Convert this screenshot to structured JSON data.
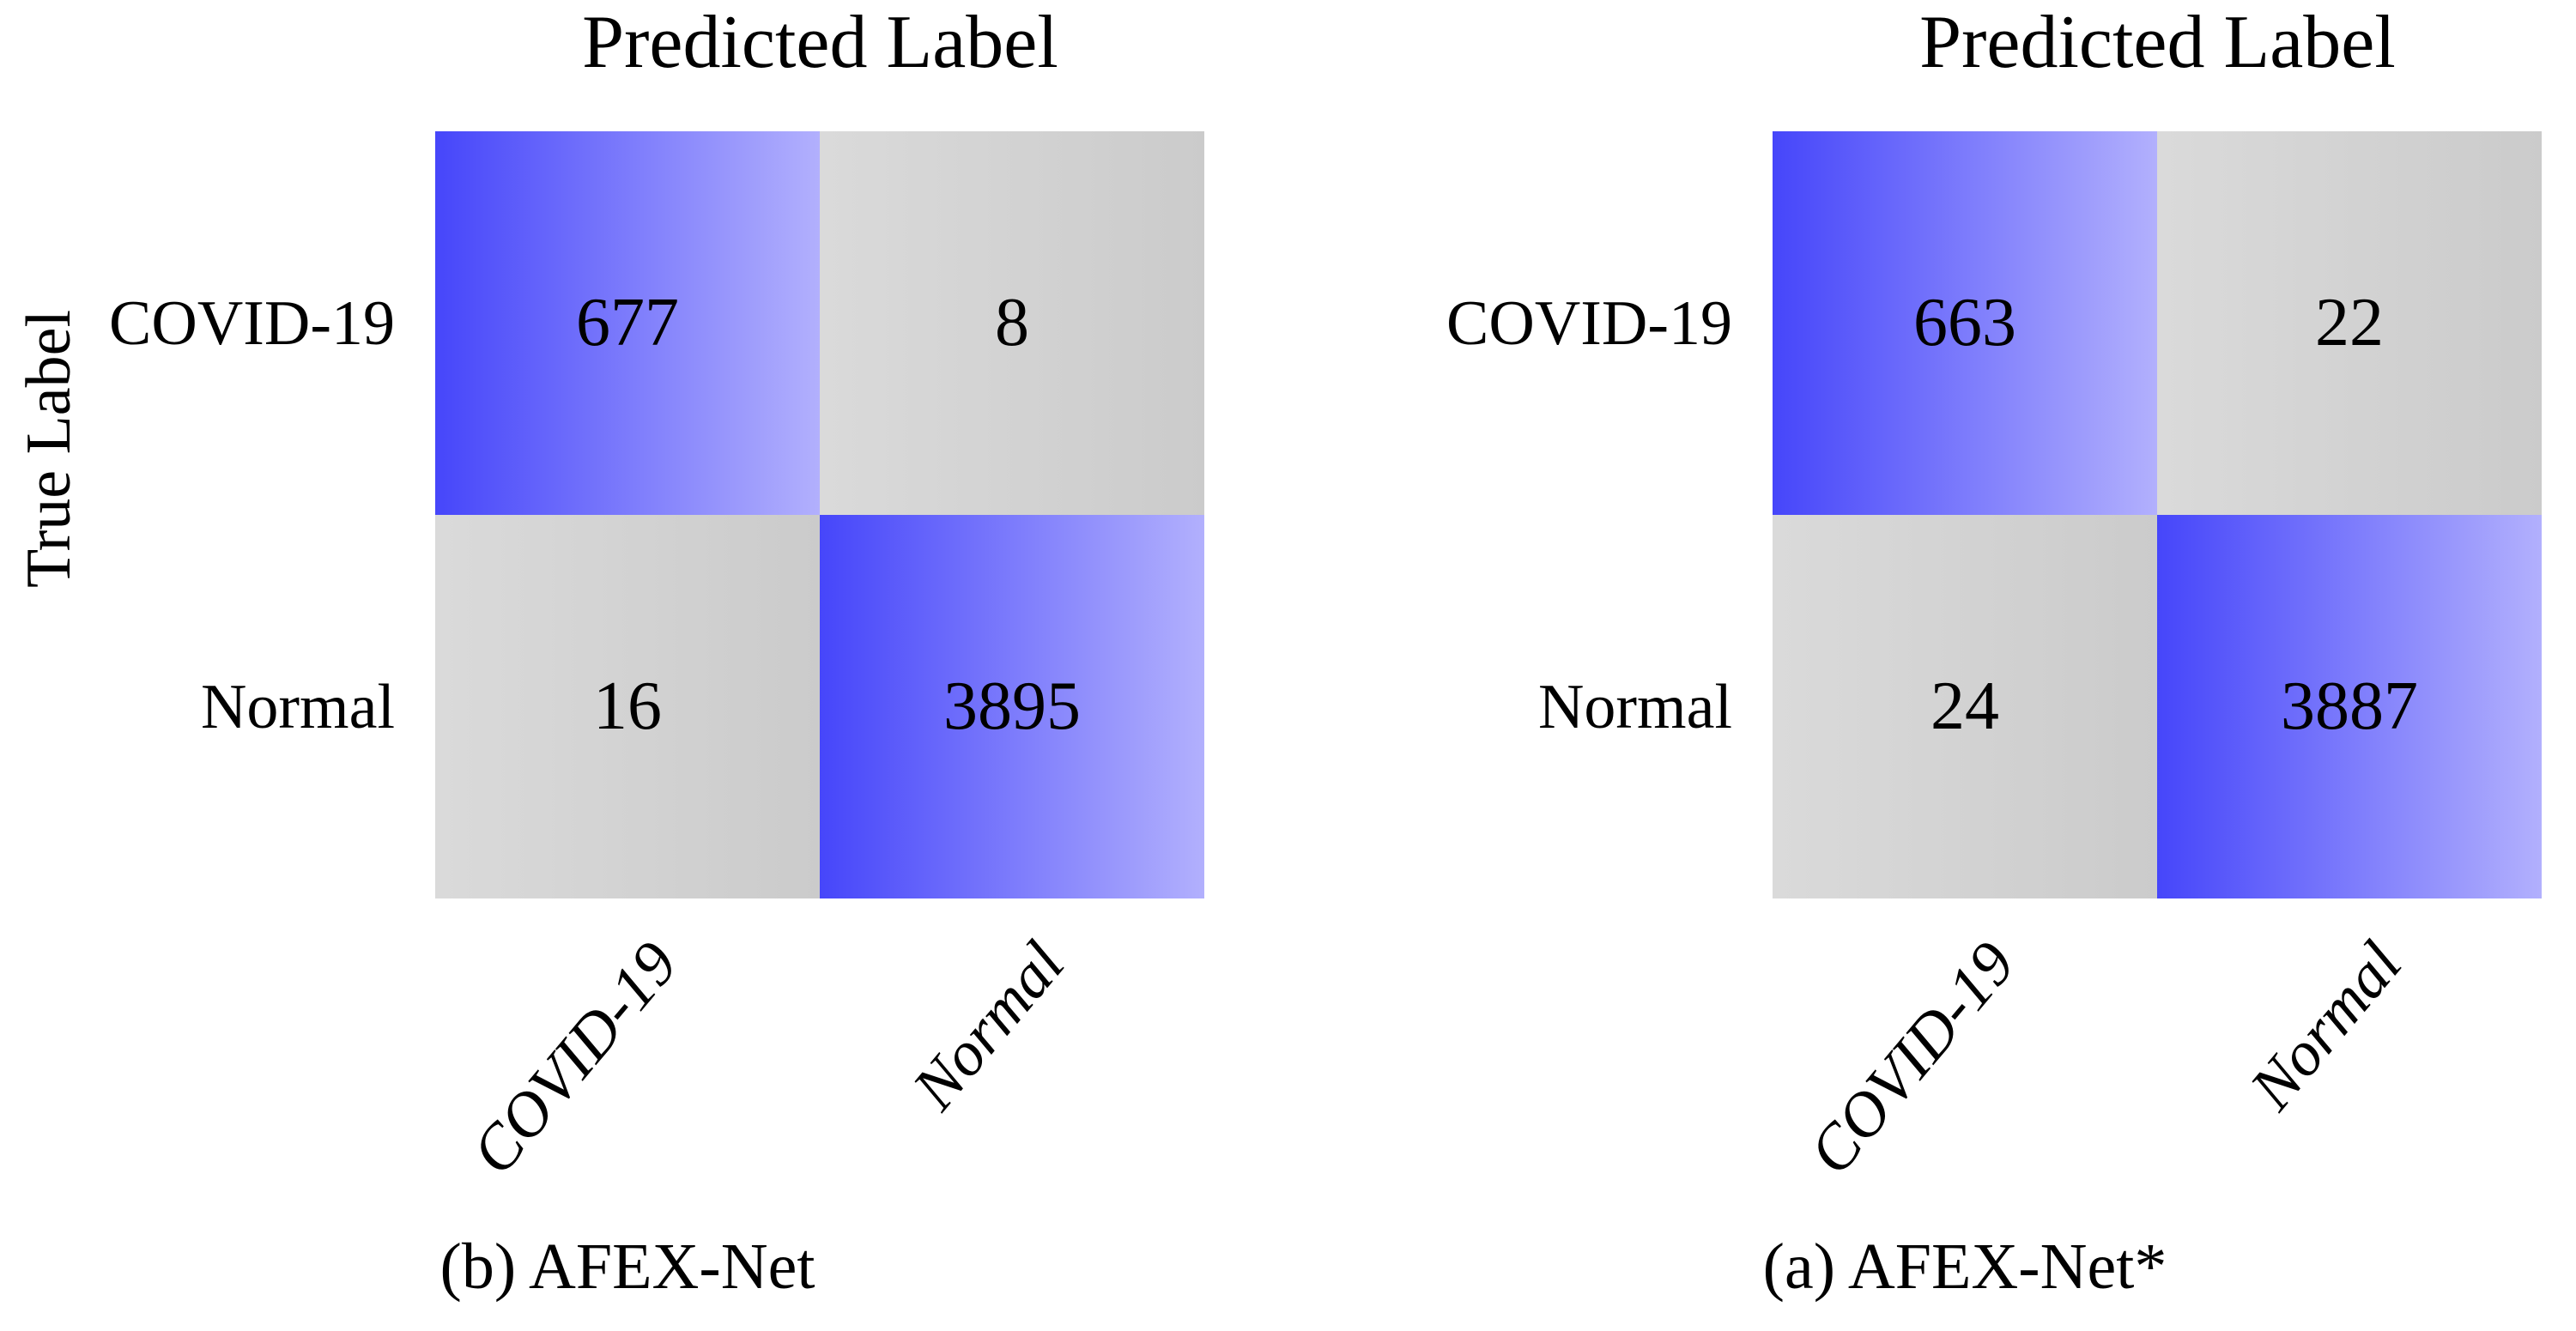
{
  "background_color": "#ffffff",
  "text_color": "#000000",
  "colors": {
    "diagonal_gradient_start": "#4646fa",
    "diagonal_gradient_end": "#b2b0fd",
    "offdiagonal_gradient_start": "#dadada",
    "offdiagonal_gradient_end": "#cbcbcb"
  },
  "chart_data": [
    {
      "type": "heatmap",
      "title": "Predicted Label",
      "ylabel": "True Label",
      "caption": "(b) AFEX-Net",
      "row_labels": [
        "COVID-19",
        "Normal"
      ],
      "col_labels": [
        "COVID-19",
        "Normal"
      ],
      "cells": [
        [
          677,
          8
        ],
        [
          16,
          3895
        ]
      ],
      "layout_hints": {
        "cell_shading": "horizontal gradient per cell, dark to light for diagonal (blue), light to dark for off-diagonal (gray)",
        "col_label_rotation_deg": -50,
        "ylabel_rotation_deg": -90
      }
    },
    {
      "type": "heatmap",
      "title": "Predicted Label",
      "caption": "(a) AFEX-Net*",
      "row_labels": [
        "COVID-19",
        "Normal"
      ],
      "col_labels": [
        "COVID-19",
        "Normal"
      ],
      "cells": [
        [
          663,
          22
        ],
        [
          24,
          3887
        ]
      ],
      "layout_hints": {
        "cell_shading": "horizontal gradient per cell, dark to light for diagonal (blue), light to dark for off-diagonal (gray)",
        "col_label_rotation_deg": -50
      }
    }
  ]
}
